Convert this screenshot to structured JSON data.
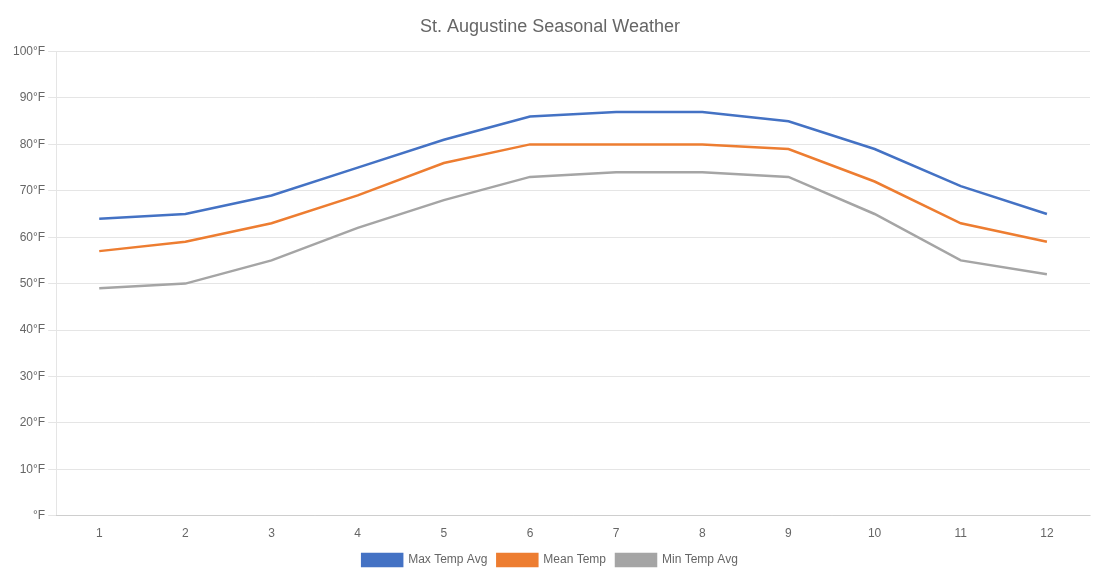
{
  "chart_data": {
    "type": "line",
    "title": "St. Augustine Seasonal Weather",
    "x": [
      1,
      2,
      3,
      4,
      5,
      6,
      7,
      8,
      9,
      10,
      11,
      12
    ],
    "series": [
      {
        "name": "Max Temp Avg",
        "color": "#4472C4",
        "values": [
          64,
          65,
          69,
          75,
          81,
          86,
          87,
          87,
          85,
          79,
          71,
          65
        ]
      },
      {
        "name": "Mean Temp",
        "color": "#ED7D31",
        "values": [
          57,
          59,
          63,
          69,
          76,
          80,
          80,
          80,
          79,
          72,
          63,
          59
        ]
      },
      {
        "name": "Min Temp Avg",
        "color": "#A5A5A5",
        "values": [
          49,
          50,
          55,
          62,
          68,
          73,
          74,
          74,
          73,
          65,
          55,
          52
        ]
      }
    ],
    "xlim": [
      0.5,
      12.5
    ],
    "xticks": [
      1,
      2,
      3,
      4,
      5,
      6,
      7,
      8,
      9,
      10,
      11,
      12
    ],
    "ylim": [
      0,
      100
    ],
    "yticks": [
      {
        "value": 0,
        "label": "°F"
      },
      {
        "value": 10,
        "label": "10°F"
      },
      {
        "value": 20,
        "label": "20°F"
      },
      {
        "value": 30,
        "label": "30°F"
      },
      {
        "value": 40,
        "label": "40°F"
      },
      {
        "value": 50,
        "label": "50°F"
      },
      {
        "value": 60,
        "label": "60°F"
      },
      {
        "value": 70,
        "label": "70°F"
      },
      {
        "value": 80,
        "label": "80°F"
      },
      {
        "value": 90,
        "label": "90°F"
      },
      {
        "value": 100,
        "label": "100°F"
      }
    ],
    "grid": true,
    "legend": "bottom"
  }
}
